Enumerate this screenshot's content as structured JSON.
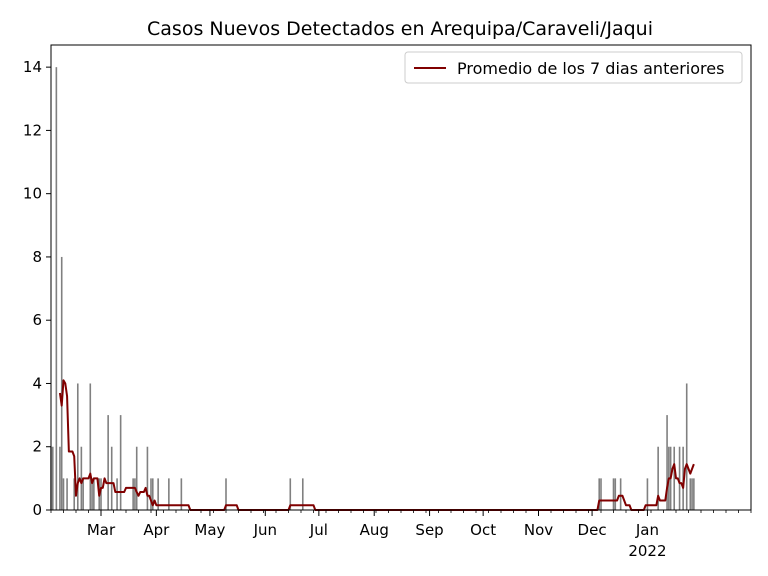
{
  "chart_data": {
    "type": "bar",
    "title": "Casos Nuevos Detectados en Arequipa/Caraveli/Jaqui",
    "xlabel": "",
    "ylabel": "",
    "ylim": [
      0,
      14.7
    ],
    "xlim": [
      "2021-02-01",
      "2022-02-28"
    ],
    "y_ticks": [
      0,
      2,
      4,
      6,
      8,
      10,
      12,
      14
    ],
    "x_ticks": [
      {
        "date": "2021-03-01",
        "label": "Mar"
      },
      {
        "date": "2021-04-01",
        "label": "Apr"
      },
      {
        "date": "2021-05-01",
        "label": "May"
      },
      {
        "date": "2021-06-01",
        "label": "Jun"
      },
      {
        "date": "2021-07-01",
        "label": "Jul"
      },
      {
        "date": "2021-08-01",
        "label": "Aug"
      },
      {
        "date": "2021-09-01",
        "label": "Sep"
      },
      {
        "date": "2021-10-01",
        "label": "Oct"
      },
      {
        "date": "2021-11-01",
        "label": "Nov"
      },
      {
        "date": "2021-12-01",
        "label": "Dec"
      },
      {
        "date": "2022-01-01",
        "label": "Jan",
        "sublabel": "2022"
      }
    ],
    "legend": {
      "position": "top-right",
      "entries": [
        "Promedio de los 7 dias anteriores"
      ]
    },
    "colors": {
      "bars": "#808080",
      "line": "#800000"
    },
    "series": [
      {
        "type": "bar",
        "points": [
          [
            "2021-02-01",
            2
          ],
          [
            "2021-02-02",
            2
          ],
          [
            "2021-02-04",
            14
          ],
          [
            "2021-02-06",
            2
          ],
          [
            "2021-02-07",
            8
          ],
          [
            "2021-02-08",
            1
          ],
          [
            "2021-02-10",
            1
          ],
          [
            "2021-02-14",
            1
          ],
          [
            "2021-02-16",
            4
          ],
          [
            "2021-02-18",
            2
          ],
          [
            "2021-02-19",
            1
          ],
          [
            "2021-02-23",
            4
          ],
          [
            "2021-02-24",
            1
          ],
          [
            "2021-02-25",
            1
          ],
          [
            "2021-02-28",
            1
          ],
          [
            "2021-03-01",
            1
          ],
          [
            "2021-03-05",
            3
          ],
          [
            "2021-03-07",
            2
          ],
          [
            "2021-03-10",
            1
          ],
          [
            "2021-03-12",
            3
          ],
          [
            "2021-03-19",
            1
          ],
          [
            "2021-03-20",
            1
          ],
          [
            "2021-03-21",
            2
          ],
          [
            "2021-03-27",
            2
          ],
          [
            "2021-03-29",
            1
          ],
          [
            "2021-03-30",
            1
          ],
          [
            "2021-04-02",
            1
          ],
          [
            "2021-04-08",
            1
          ],
          [
            "2021-04-15",
            1
          ],
          [
            "2021-05-10",
            1
          ],
          [
            "2021-06-15",
            1
          ],
          [
            "2021-06-22",
            1
          ],
          [
            "2021-12-05",
            1
          ],
          [
            "2021-12-06",
            1
          ],
          [
            "2021-12-13",
            1
          ],
          [
            "2021-12-14",
            1
          ],
          [
            "2021-12-17",
            1
          ],
          [
            "2022-01-01",
            1
          ],
          [
            "2022-01-07",
            2
          ],
          [
            "2022-01-12",
            3
          ],
          [
            "2022-01-13",
            2
          ],
          [
            "2022-01-14",
            2
          ],
          [
            "2022-01-16",
            2
          ],
          [
            "2022-01-19",
            2
          ],
          [
            "2022-01-21",
            2
          ],
          [
            "2022-01-23",
            4
          ],
          [
            "2022-01-25",
            1
          ],
          [
            "2022-01-26",
            1
          ],
          [
            "2022-01-27",
            1
          ]
        ]
      },
      {
        "type": "line",
        "name": "Promedio de los 7 dias anteriores",
        "points": [
          [
            "2021-02-06",
            3.7
          ],
          [
            "2021-02-07",
            3.3
          ],
          [
            "2021-02-08",
            4.1
          ],
          [
            "2021-02-09",
            4.0
          ],
          [
            "2021-02-10",
            3.6
          ],
          [
            "2021-02-11",
            1.85
          ],
          [
            "2021-02-12",
            1.85
          ],
          [
            "2021-02-13",
            1.85
          ],
          [
            "2021-02-14",
            1.7
          ],
          [
            "2021-02-15",
            0.45
          ],
          [
            "2021-02-16",
            0.85
          ],
          [
            "2021-02-17",
            1.0
          ],
          [
            "2021-02-18",
            0.85
          ],
          [
            "2021-02-19",
            1.0
          ],
          [
            "2021-02-20",
            1.0
          ],
          [
            "2021-02-22",
            1.0
          ],
          [
            "2021-02-23",
            1.15
          ],
          [
            "2021-02-24",
            0.85
          ],
          [
            "2021-02-25",
            1.0
          ],
          [
            "2021-02-27",
            1.0
          ],
          [
            "2021-02-28",
            0.45
          ],
          [
            "2021-03-01",
            0.7
          ],
          [
            "2021-03-02",
            0.7
          ],
          [
            "2021-03-03",
            1.0
          ],
          [
            "2021-03-04",
            0.85
          ],
          [
            "2021-03-06",
            0.85
          ],
          [
            "2021-03-08",
            0.85
          ],
          [
            "2021-03-09",
            0.57
          ],
          [
            "2021-03-11",
            0.57
          ],
          [
            "2021-03-13",
            0.57
          ],
          [
            "2021-03-14",
            0.57
          ],
          [
            "2021-03-15",
            0.7
          ],
          [
            "2021-03-16",
            0.7
          ],
          [
            "2021-03-20",
            0.7
          ],
          [
            "2021-03-21",
            0.57
          ],
          [
            "2021-03-22",
            0.45
          ],
          [
            "2021-03-23",
            0.57
          ],
          [
            "2021-03-24",
            0.57
          ],
          [
            "2021-03-25",
            0.57
          ],
          [
            "2021-03-26",
            0.7
          ],
          [
            "2021-03-27",
            0.45
          ],
          [
            "2021-03-28",
            0.45
          ],
          [
            "2021-03-29",
            0.3
          ],
          [
            "2021-03-30",
            0.15
          ],
          [
            "2021-03-31",
            0.3
          ],
          [
            "2021-04-01",
            0.15
          ],
          [
            "2021-04-19",
            0.15
          ],
          [
            "2021-04-20",
            0
          ],
          [
            "2021-05-09",
            0
          ],
          [
            "2021-05-10",
            0.15
          ],
          [
            "2021-05-16",
            0.15
          ],
          [
            "2021-05-17",
            0
          ],
          [
            "2021-06-14",
            0
          ],
          [
            "2021-06-15",
            0.15
          ],
          [
            "2021-06-28",
            0.15
          ],
          [
            "2021-06-29",
            0
          ],
          [
            "2021-12-04",
            0
          ],
          [
            "2021-12-05",
            0.3
          ],
          [
            "2021-12-15",
            0.3
          ],
          [
            "2021-12-16",
            0.45
          ],
          [
            "2021-12-18",
            0.45
          ],
          [
            "2021-12-20",
            0.15
          ],
          [
            "2021-12-22",
            0.15
          ],
          [
            "2021-12-23",
            0
          ],
          [
            "2021-12-30",
            0
          ],
          [
            "2021-12-31",
            0.15
          ],
          [
            "2022-01-06",
            0.15
          ],
          [
            "2022-01-07",
            0.45
          ],
          [
            "2022-01-08",
            0.3
          ],
          [
            "2022-01-11",
            0.3
          ],
          [
            "2022-01-12",
            0.7
          ],
          [
            "2022-01-13",
            1.0
          ],
          [
            "2022-01-14",
            1.0
          ],
          [
            "2022-01-15",
            1.3
          ],
          [
            "2022-01-16",
            1.45
          ],
          [
            "2022-01-17",
            1.0
          ],
          [
            "2022-01-18",
            1.0
          ],
          [
            "2022-01-19",
            0.85
          ],
          [
            "2022-01-20",
            0.85
          ],
          [
            "2022-01-21",
            0.7
          ],
          [
            "2022-01-22",
            1.3
          ],
          [
            "2022-01-23",
            1.45
          ],
          [
            "2022-01-24",
            1.3
          ],
          [
            "2022-01-25",
            1.15
          ],
          [
            "2022-01-26",
            1.3
          ],
          [
            "2022-01-27",
            1.45
          ]
        ]
      }
    ]
  }
}
